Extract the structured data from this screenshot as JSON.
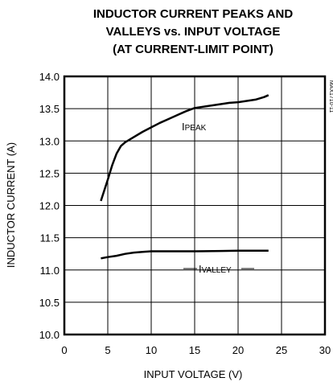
{
  "chart_data": {
    "type": "line",
    "title": [
      "INDUCTOR CURRENT PEAKS AND",
      "VALLEYS vs. INPUT VOLTAGE",
      "(AT CURRENT-LIMIT POINT)"
    ],
    "xlabel": "INPUT VOLTAGE (V)",
    "ylabel": "INDUCTOR CURRENT (A)",
    "figure_id": "MAX1710-11",
    "xlim": [
      0,
      30
    ],
    "xticks": [
      0,
      5,
      10,
      15,
      20,
      25,
      30
    ],
    "ylim": [
      10.0,
      14.0
    ],
    "yticks": [
      {
        "value": 10,
        "label": "10.0"
      },
      {
        "value": 10.5,
        "label": "10.5"
      },
      {
        "value": 11,
        "label": "11.0"
      },
      {
        "value": 11.5,
        "label": "11.5"
      },
      {
        "value": 12,
        "label": "12.0"
      },
      {
        "value": 12.5,
        "label": "12.5"
      },
      {
        "value": 13,
        "label": "13.0"
      },
      {
        "value": 13.5,
        "label": "13.5"
      },
      {
        "value": 14,
        "label": "14.0"
      }
    ],
    "grid": true,
    "series": [
      {
        "label_main": "I",
        "label_sub": "PEAK",
        "color": "#000000",
        "x": [
          4.2,
          5,
          5.5,
          6,
          6.5,
          7,
          8,
          9,
          10,
          11,
          12,
          13,
          14,
          15,
          16,
          17,
          18,
          19,
          20,
          21,
          22,
          23,
          23.5
        ],
        "values": [
          12.07,
          12.4,
          12.62,
          12.8,
          12.92,
          12.98,
          13.06,
          13.14,
          13.21,
          13.28,
          13.34,
          13.4,
          13.46,
          13.51,
          13.53,
          13.55,
          13.57,
          13.59,
          13.6,
          13.62,
          13.64,
          13.68,
          13.71
        ]
      },
      {
        "label_main": "I",
        "label_sub": "VALLEY",
        "color": "#000000",
        "x": [
          4.2,
          5,
          6,
          7,
          8,
          9,
          10,
          12,
          15,
          18,
          20,
          23.5
        ],
        "values": [
          11.18,
          11.2,
          11.22,
          11.25,
          11.27,
          11.28,
          11.29,
          11.29,
          11.29,
          11.295,
          11.3,
          11.3
        ]
      }
    ]
  }
}
